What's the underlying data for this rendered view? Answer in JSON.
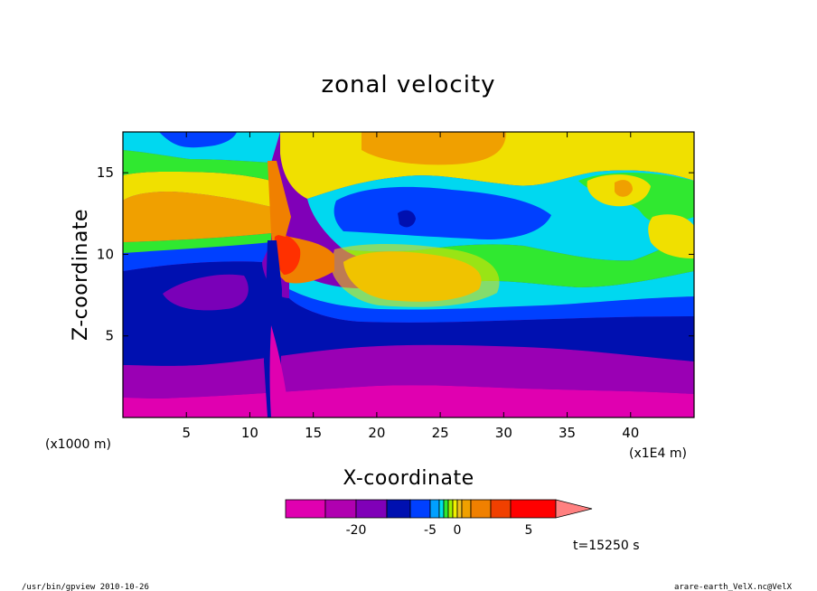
{
  "chart_data": {
    "type": "heatmap",
    "title": "zonal velocity",
    "xlabel": "X-coordinate",
    "ylabel": "Z-coordinate",
    "x_unit_label": "(x1E4 m)",
    "y_unit_label": "(x1000 m)",
    "x_ticks": [
      5,
      10,
      15,
      20,
      25,
      30,
      35,
      40
    ],
    "y_ticks": [
      5,
      10,
      15
    ],
    "xlim": [
      0,
      45
    ],
    "ylim": [
      0,
      17.5
    ],
    "colorbar": {
      "levels": [
        -30,
        -25,
        -20,
        -15,
        -10,
        -5,
        -4,
        -3,
        -2,
        -1,
        0,
        1,
        2,
        3,
        4,
        5,
        10,
        15
      ],
      "colors": [
        "#e000b0",
        "#b000b0",
        "#8000b8",
        "#0010b0",
        "#0040ff",
        "#00a0ff",
        "#00e0e8",
        "#30e830",
        "#a0f000",
        "#f0f000",
        "#f0c020",
        "#f0a000",
        "#f08000",
        "#f04000",
        "#ff0000",
        "#ff8080"
      ],
      "tick_labels": [
        "-20",
        "-5",
        "0",
        "5"
      ],
      "extend": "max"
    },
    "time_label": "t=15250 s",
    "regions_note": "filled contours: magenta/purple near surface (strong negative), blue mid levels, green/cyan transition, orange/yellow upper jet; sharp feature near x=12"
  },
  "footer": {
    "left": "/usr/bin/gpview   2010-10-26",
    "right": "arare-earth_VelX.nc@VelX"
  }
}
